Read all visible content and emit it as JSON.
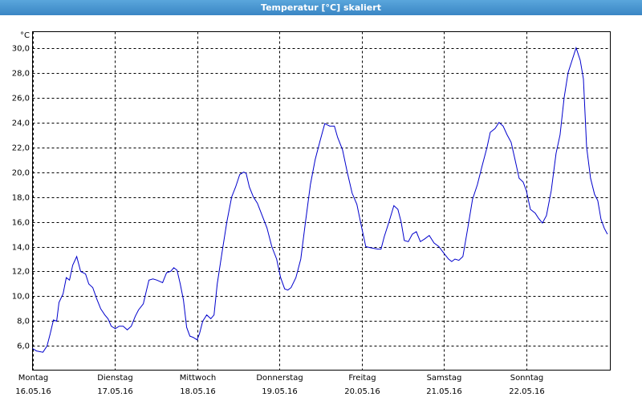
{
  "window_title": "Temperatur [°C] skaliert",
  "chart_data": {
    "type": "line",
    "y_label": "°C",
    "x": [
      0,
      0.049,
      0.127,
      0.176,
      0.215,
      0.254,
      0.293,
      0.322,
      0.371,
      0.41,
      0.449,
      0.488,
      0.537,
      0.585,
      0.644,
      0.683,
      0.732,
      0.78,
      0.829,
      0.878,
      0.917,
      0.956,
      1.005,
      1.054,
      1.102,
      1.151,
      1.2,
      1.249,
      1.288,
      1.346,
      1.385,
      1.415,
      1.463,
      1.512,
      1.58,
      1.629,
      1.678,
      1.717,
      1.756,
      1.795,
      1.834,
      1.873,
      1.912,
      1.951,
      2,
      2.029,
      2.068,
      2.117,
      2.166,
      2.205,
      2.244,
      2.302,
      2.361,
      2.42,
      2.468,
      2.517,
      2.566,
      2.595,
      2.634,
      2.683,
      2.732,
      2.79,
      2.849,
      2.907,
      2.966,
      3.015,
      3.063,
      3.102,
      3.141,
      3.2,
      3.259,
      3.317,
      3.376,
      3.434,
      3.493,
      3.551,
      3.61,
      3.668,
      3.707,
      3.766,
      3.824,
      3.883,
      3.941,
      4,
      4.049,
      4.117,
      4.195,
      4.234,
      4.273,
      4.332,
      4.39,
      4.439,
      4.478,
      4.517,
      4.566,
      4.615,
      4.663,
      4.712,
      4.761,
      4.82,
      4.878,
      4.937,
      4.995,
      5.054,
      5.093,
      5.132,
      5.18,
      5.229,
      5.288,
      5.346,
      5.405,
      5.463,
      5.522,
      5.561,
      5.62,
      5.668,
      5.717,
      5.766,
      5.815,
      5.863,
      5.912,
      5.961,
      6,
      6.049,
      6.107,
      6.146,
      6.195,
      6.244,
      6.302,
      6.361,
      6.41,
      6.459,
      6.507,
      6.556,
      6.605,
      6.654,
      6.693,
      6.732,
      6.78,
      6.829,
      6.868,
      6.907,
      6.946,
      6.985
    ],
    "series": [
      {
        "color": "#0000cc",
        "values": [
          5.8,
          5.6,
          5.5,
          6.0,
          7.0,
          8.1,
          8.0,
          9.5,
          10.2,
          11.5,
          11.3,
          12.5,
          13.2,
          12.0,
          11.8,
          11.0,
          10.7,
          9.8,
          9.0,
          8.5,
          8.2,
          7.6,
          7.4,
          7.6,
          7.6,
          7.3,
          7.6,
          8.4,
          8.9,
          9.4,
          10.5,
          11.3,
          11.4,
          11.3,
          11.1,
          11.9,
          12.0,
          12.3,
          12.1,
          11.0,
          9.7,
          7.5,
          6.8,
          6.7,
          6.5,
          7.0,
          8.0,
          8.5,
          8.2,
          8.5,
          11.0,
          13.5,
          16.0,
          18.0,
          18.8,
          19.8,
          20.0,
          19.9,
          18.8,
          18.0,
          17.5,
          16.5,
          15.5,
          14.0,
          13.0,
          11.5,
          10.6,
          10.5,
          10.7,
          11.5,
          13.0,
          16.0,
          19.0,
          21.0,
          22.5,
          23.9,
          23.7,
          23.7,
          22.8,
          21.8,
          20.0,
          18.3,
          17.4,
          15.5,
          14.0,
          13.9,
          13.8,
          13.8,
          14.8,
          16.0,
          17.3,
          17.0,
          16.0,
          14.5,
          14.4,
          15.0,
          15.2,
          14.4,
          14.6,
          14.9,
          14.3,
          14.0,
          13.5,
          13.0,
          12.8,
          13.0,
          12.9,
          13.2,
          15.5,
          17.8,
          19.0,
          20.5,
          22.0,
          23.2,
          23.5,
          24.0,
          23.7,
          23.0,
          22.4,
          21.0,
          19.5,
          19.2,
          18.5,
          17.0,
          16.7,
          16.3,
          15.9,
          16.5,
          18.5,
          21.5,
          23.0,
          26.0,
          28.0,
          29.0,
          30.0,
          29.0,
          27.5,
          22.0,
          19.5,
          18.2,
          17.7,
          16.2,
          15.5,
          15.0
        ]
      }
    ],
    "xlim": [
      0,
      7.02
    ],
    "ylim": [
      4.06,
      31.3
    ],
    "xticks": [
      {
        "value": 0,
        "label": "Montag",
        "date": "16.05.16"
      },
      {
        "value": 1,
        "label": "Dienstag",
        "date": "17.05.16"
      },
      {
        "value": 2,
        "label": "Mittwoch",
        "date": "18.05.16"
      },
      {
        "value": 3,
        "label": "Donnerstag",
        "date": "19.05.16"
      },
      {
        "value": 4,
        "label": "Freitag",
        "date": "20.05.16"
      },
      {
        "value": 5,
        "label": "Samstag",
        "date": "21.05.16"
      },
      {
        "value": 6,
        "label": "Sonntag",
        "date": "22.05.16"
      }
    ],
    "yticks": [
      {
        "value": 6,
        "label": "6,0"
      },
      {
        "value": 8,
        "label": "8,0"
      },
      {
        "value": 10,
        "label": "10,0"
      },
      {
        "value": 12,
        "label": "12,0"
      },
      {
        "value": 14,
        "label": "14,0"
      },
      {
        "value": 16,
        "label": "16,0"
      },
      {
        "value": 18,
        "label": "18,0"
      },
      {
        "value": 20,
        "label": "20,0"
      },
      {
        "value": 22,
        "label": "22,0"
      },
      {
        "value": 24,
        "label": "24,0"
      },
      {
        "value": 26,
        "label": "26,0"
      },
      {
        "value": 28,
        "label": "28,0"
      },
      {
        "value": 30,
        "label": "30,0"
      }
    ],
    "grid": true
  }
}
